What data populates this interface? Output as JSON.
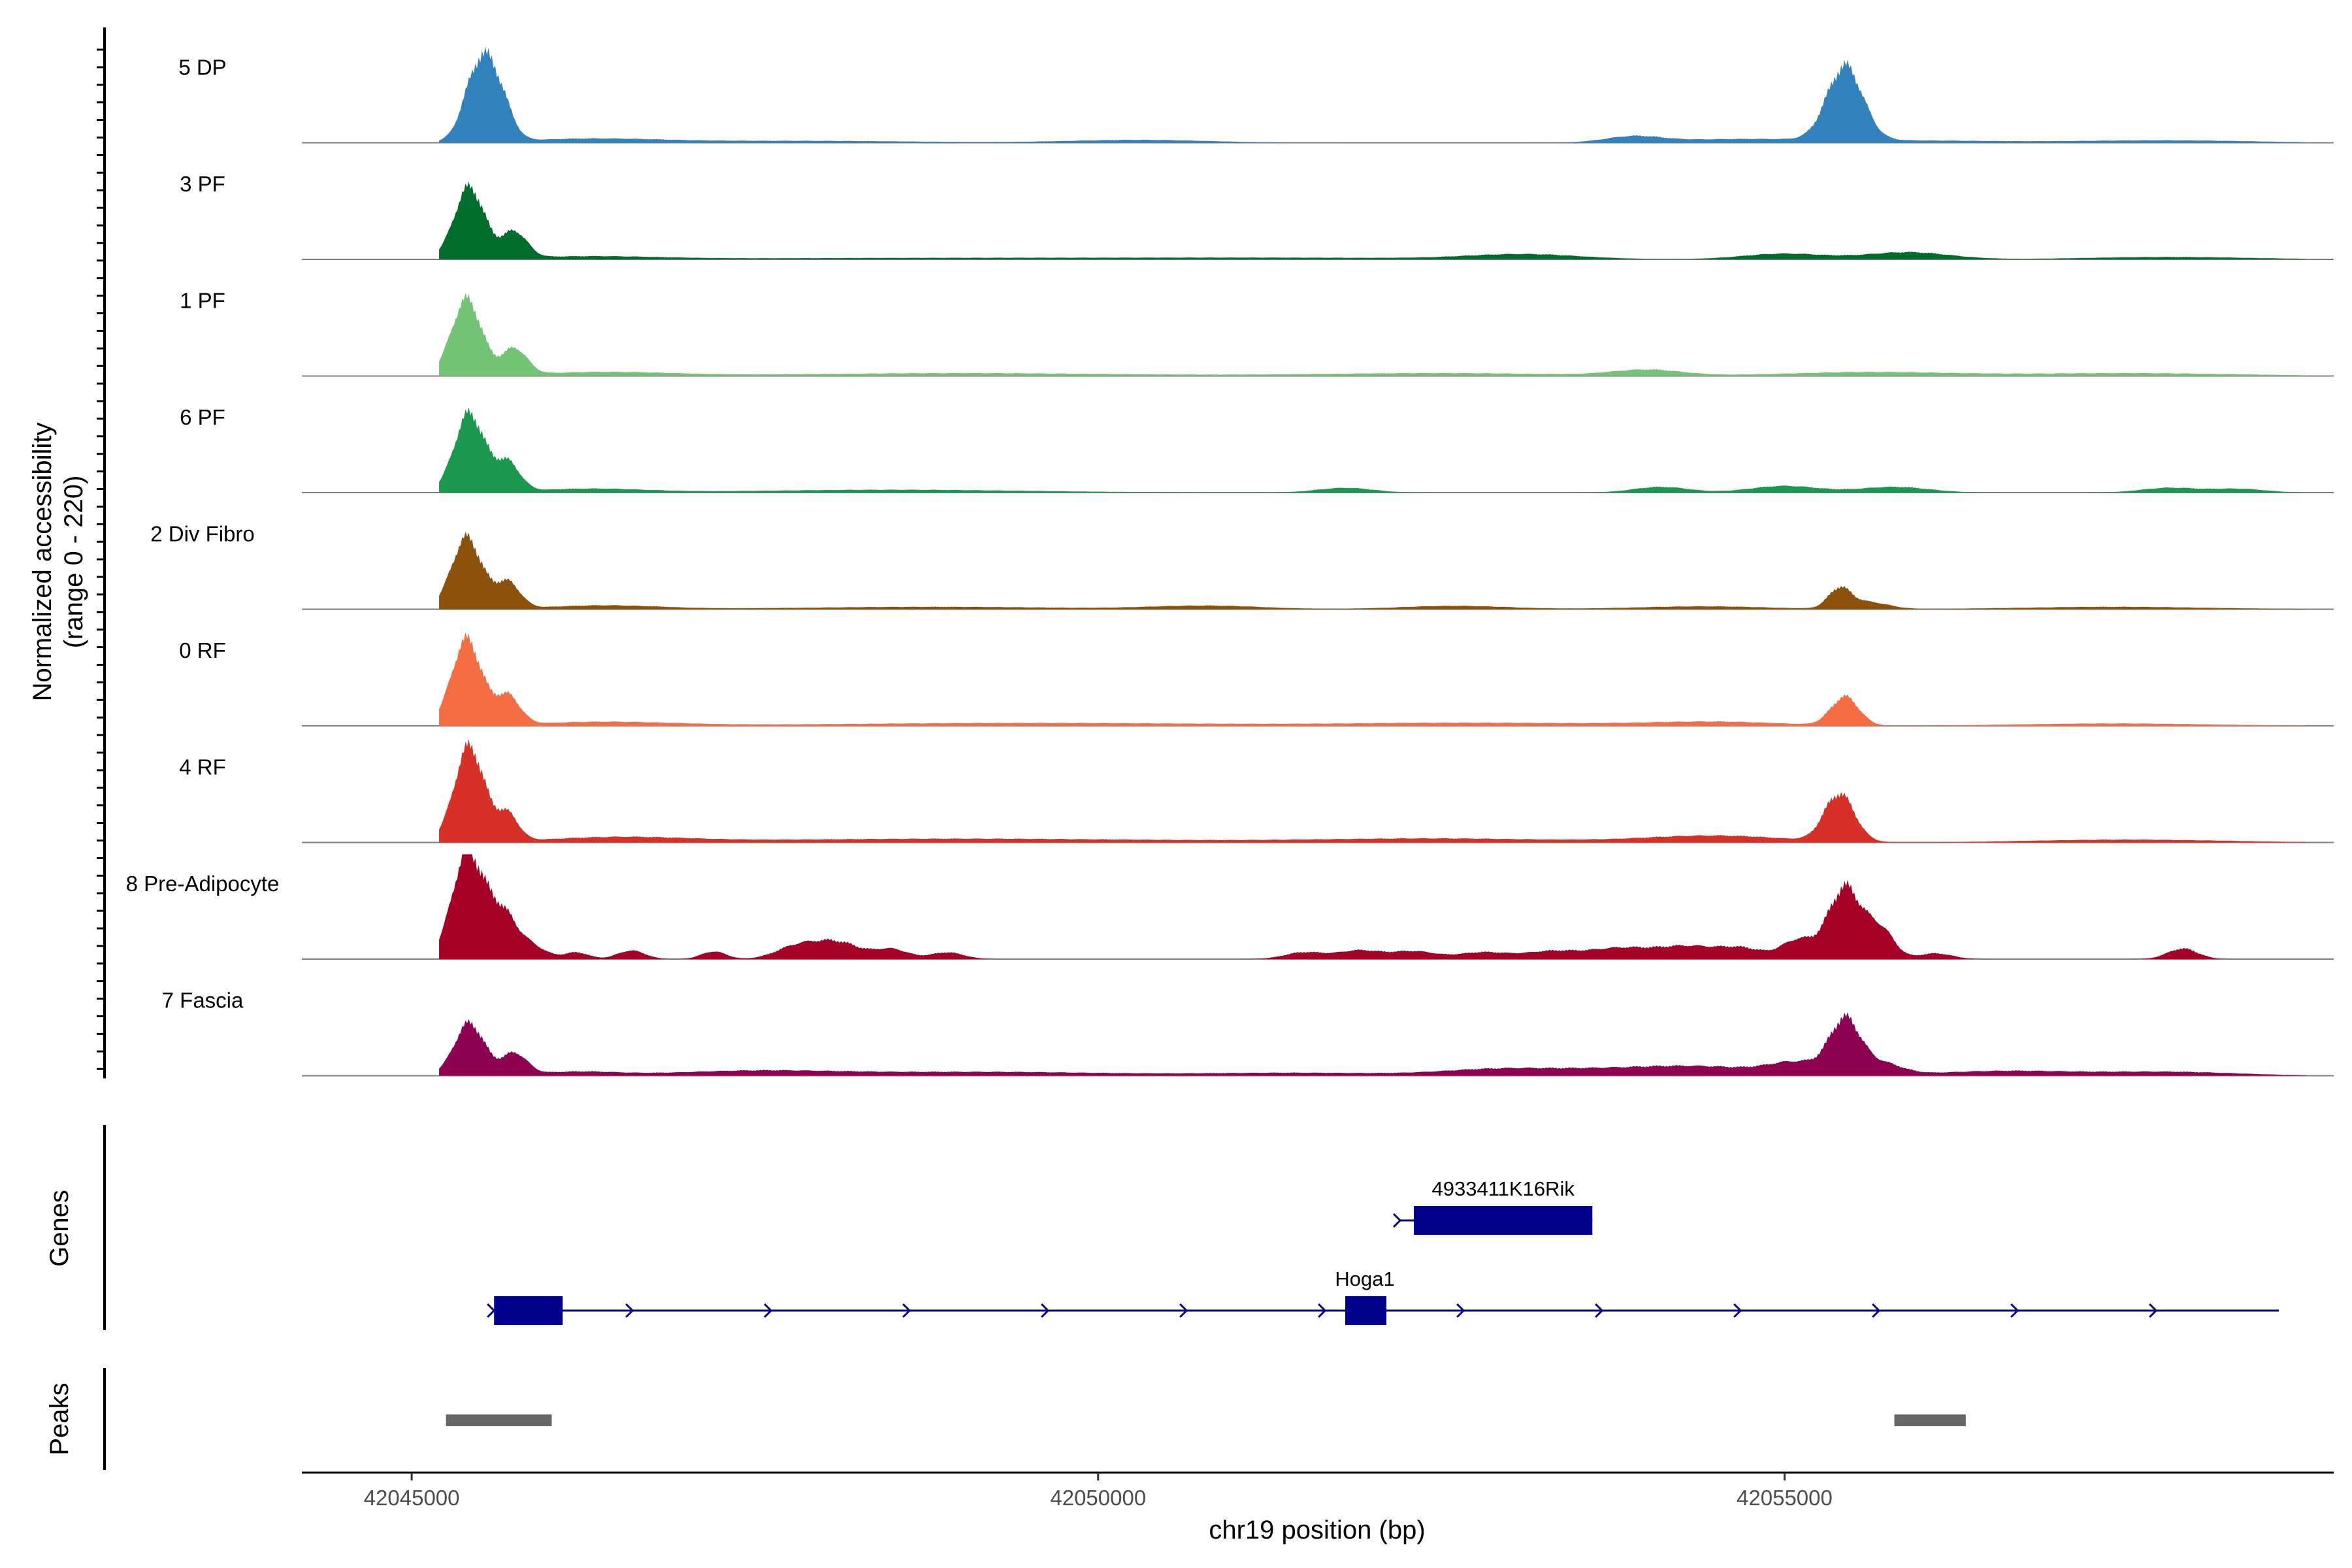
{
  "chart_data": {
    "type": "area",
    "title": "",
    "ylabel_lines": [
      "Normalized accessibility",
      "(range 0 - 220)"
    ],
    "xlabel": "chr19 position (bp)",
    "y_range": [
      0,
      220
    ],
    "x_range": [
      42044200,
      42059000
    ],
    "x_ticks": [
      42045000,
      42050000,
      42055000
    ],
    "x_tick_labels": [
      "42045000",
      "42050000",
      "42055000"
    ],
    "tracks": [
      {
        "name": "5 DP",
        "color": "#3182bd",
        "peaks": [
          [
            42045500,
            165,
            110
          ],
          [
            42045650,
            60,
            90
          ],
          [
            42046300,
            8,
            500
          ],
          [
            42047800,
            4,
            900
          ],
          [
            42050300,
            6,
            500
          ],
          [
            42053900,
            12,
            200
          ],
          [
            42054600,
            6,
            500
          ],
          [
            42055440,
            155,
            130
          ],
          [
            42055750,
            5,
            800
          ],
          [
            42057800,
            5,
            600
          ]
        ]
      },
      {
        "name": "3 PF",
        "color": "#006d2c",
        "peaks": [
          [
            42045420,
            150,
            110
          ],
          [
            42045750,
            55,
            90
          ],
          [
            42046300,
            6,
            500
          ],
          [
            42048800,
            3,
            1500
          ],
          [
            42051500,
            3,
            1200
          ],
          [
            42053100,
            10,
            400
          ],
          [
            42055000,
            12,
            300
          ],
          [
            42055900,
            15,
            300
          ],
          [
            42057800,
            5,
            600
          ]
        ]
      },
      {
        "name": "1 PF",
        "color": "#74c476",
        "peaks": [
          [
            42045400,
            160,
            110
          ],
          [
            42045750,
            55,
            90
          ],
          [
            42046400,
            8,
            500
          ],
          [
            42049000,
            6,
            1200
          ],
          [
            42052500,
            6,
            900
          ],
          [
            42054000,
            12,
            250
          ],
          [
            42055600,
            8,
            600
          ],
          [
            42057500,
            6,
            800
          ]
        ]
      },
      {
        "name": "6 PF",
        "color": "#1a9850",
        "peaks": [
          [
            42045420,
            165,
            110
          ],
          [
            42045700,
            60,
            90
          ],
          [
            42046300,
            8,
            400
          ],
          [
            42048500,
            6,
            1000
          ],
          [
            42051800,
            10,
            200
          ],
          [
            42054100,
            12,
            200
          ],
          [
            42055000,
            14,
            250
          ],
          [
            42055800,
            12,
            250
          ],
          [
            42057800,
            10,
            200
          ],
          [
            42058300,
            8,
            200
          ]
        ]
      },
      {
        "name": "2 Div Fibro",
        "color": "#8c510a",
        "peaks": [
          [
            42045400,
            150,
            110
          ],
          [
            42045700,
            55,
            90
          ],
          [
            42046400,
            8,
            400
          ],
          [
            42048800,
            5,
            1000
          ],
          [
            42050800,
            7,
            400
          ],
          [
            42052600,
            7,
            400
          ],
          [
            42054400,
            6,
            500
          ],
          [
            42055400,
            40,
            80
          ],
          [
            42055600,
            15,
            150
          ],
          [
            42057400,
            5,
            700
          ]
        ]
      },
      {
        "name": "0 RF",
        "color": "#f46d43",
        "peaks": [
          [
            42045400,
            180,
            110
          ],
          [
            42045700,
            60,
            90
          ],
          [
            42046400,
            8,
            500
          ],
          [
            42049500,
            6,
            1500
          ],
          [
            42052800,
            6,
            900
          ],
          [
            42054500,
            8,
            500
          ],
          [
            42055440,
            60,
            100
          ],
          [
            42057400,
            5,
            700
          ]
        ]
      },
      {
        "name": "4 RF",
        "color": "#d73027",
        "peaks": [
          [
            42045420,
            200,
            110
          ],
          [
            42045700,
            55,
            80
          ],
          [
            42046500,
            10,
            500
          ],
          [
            42049000,
            8,
            1500
          ],
          [
            42052500,
            8,
            900
          ],
          [
            42054500,
            14,
            500
          ],
          [
            42055400,
            100,
            110
          ],
          [
            42057500,
            6,
            700
          ]
        ]
      },
      {
        "name": "8 Pre-Adipocyte",
        "color": "#a50026",
        "peaks": [
          [
            42045400,
            215,
            110
          ],
          [
            42045650,
            100,
            120
          ],
          [
            42045900,
            20,
            100
          ],
          [
            42046200,
            14,
            90
          ],
          [
            42046600,
            18,
            100
          ],
          [
            42047200,
            16,
            90
          ],
          [
            42047800,
            25,
            150
          ],
          [
            42048100,
            35,
            170
          ],
          [
            42048500,
            20,
            120
          ],
          [
            42048900,
            14,
            120
          ],
          [
            42051500,
            14,
            140
          ],
          [
            42051900,
            18,
            160
          ],
          [
            42052300,
            16,
            160
          ],
          [
            42052800,
            14,
            180
          ],
          [
            42053300,
            16,
            200
          ],
          [
            42053800,
            22,
            220
          ],
          [
            42054300,
            26,
            220
          ],
          [
            42054700,
            20,
            160
          ],
          [
            42055100,
            40,
            120
          ],
          [
            42055440,
            150,
            120
          ],
          [
            42055700,
            60,
            100
          ],
          [
            42056100,
            12,
            120
          ],
          [
            42057900,
            22,
            110
          ]
        ]
      },
      {
        "name": "7 Fascia",
        "color": "#8e0152",
        "peaks": [
          [
            42045420,
            110,
            110
          ],
          [
            42045750,
            45,
            90
          ],
          [
            42046200,
            8,
            300
          ],
          [
            42047500,
            10,
            600
          ],
          [
            42049200,
            8,
            900
          ],
          [
            42051500,
            6,
            700
          ],
          [
            42052900,
            12,
            400
          ],
          [
            42053800,
            14,
            500
          ],
          [
            42054500,
            14,
            400
          ],
          [
            42055100,
            25,
            200
          ],
          [
            42055440,
            110,
            110
          ],
          [
            42055700,
            25,
            150
          ],
          [
            42056600,
            10,
            500
          ],
          [
            42057800,
            8,
            500
          ]
        ]
      }
    ],
    "genes_label": "Genes",
    "genes": [
      {
        "name": "4933411K16Rik",
        "start": 42052200,
        "end": 42053600,
        "exons": [
          [
            42052300,
            42053600
          ]
        ]
      },
      {
        "name": "Hoga1",
        "start": 42045600,
        "end": 42058600,
        "exons": [
          [
            42045600,
            42046100
          ],
          [
            42051800,
            42052100
          ]
        ]
      }
    ],
    "gene_color": "#00008b",
    "peaks_label": "Peaks",
    "peak_regions": [
      [
        42045250,
        42046020
      ],
      [
        42055800,
        42056320
      ]
    ],
    "peak_color": "#666666"
  }
}
